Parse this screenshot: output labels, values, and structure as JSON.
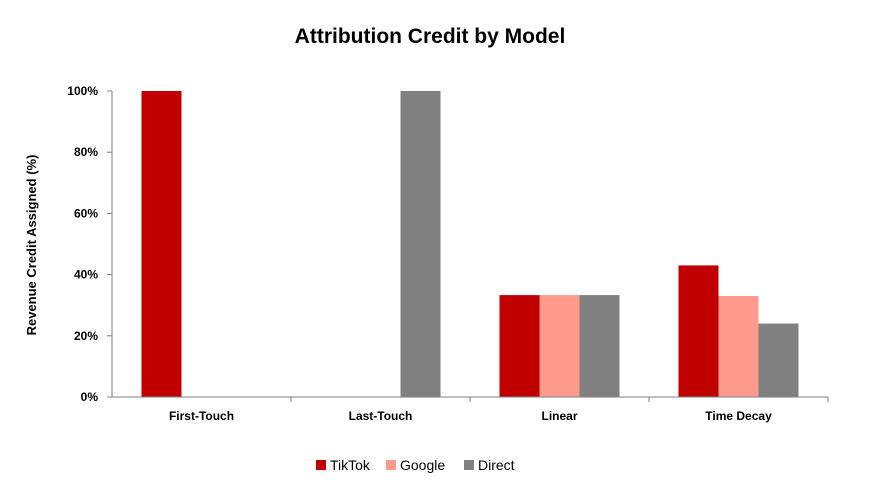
{
  "chart_data": {
    "type": "bar",
    "title": "Attribution Credit by Model",
    "xlabel": "",
    "ylabel": "Revenue Credit Assigned (%)",
    "categories": [
      "First-Touch",
      "Last-Touch",
      "Linear",
      "Time Decay"
    ],
    "series": [
      {
        "name": "TikTok",
        "color": "#c00000",
        "values": [
          100,
          0,
          33.3,
          43
        ]
      },
      {
        "name": "Google",
        "color": "#ff9a8c",
        "values": [
          0,
          0,
          33.3,
          33
        ]
      },
      {
        "name": "Direct",
        "color": "#808080",
        "values": [
          0,
          100,
          33.3,
          24
        ]
      }
    ],
    "ylim": [
      0,
      100
    ],
    "yticks": [
      0,
      20,
      40,
      60,
      80,
      100
    ],
    "ytick_labels": [
      "0%",
      "20%",
      "40%",
      "60%",
      "80%",
      "100%"
    ],
    "grid": false,
    "legend_position": "bottom"
  }
}
